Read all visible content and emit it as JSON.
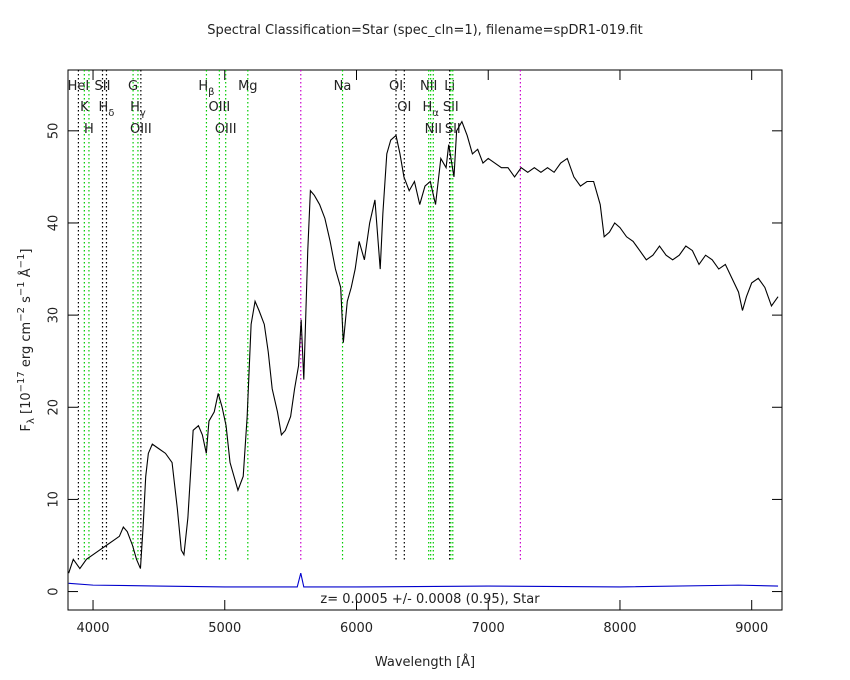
{
  "chart_data": {
    "type": "line",
    "title": "Spectral Classification=Star (spec_cln=1), filename=spDR1-019.fit",
    "xlabel": "Wavelength [Å]",
    "ylabel": [
      {
        "text": "F"
      },
      {
        "text": "λ",
        "shift": "sub"
      },
      {
        "text": " [10"
      },
      {
        "text": "−17",
        "shift": "sup"
      },
      {
        "text": " erg cm"
      },
      {
        "text": "−2",
        "shift": "sup"
      },
      {
        "text": " s"
      },
      {
        "text": "−1",
        "shift": "sup"
      },
      {
        "text": " Å"
      },
      {
        "text": "−1",
        "shift": "sup"
      },
      {
        "text": "]"
      }
    ],
    "annotation": "z= 0.0005 +/- 0.0008 (0.95), Star",
    "xlim": [
      3810,
      9230
    ],
    "ylim": [
      -2,
      56.6
    ],
    "xticks": [
      4000,
      5000,
      6000,
      7000,
      8000,
      9000
    ],
    "yticks": [
      0,
      10,
      20,
      30,
      40,
      50
    ],
    "series": [
      {
        "color": "#000000",
        "x": [
          3815,
          3850,
          3900,
          3950,
          4000,
          4050,
          4100,
          4150,
          4200,
          4230,
          4260,
          4300,
          4330,
          4360,
          4380,
          4400,
          4420,
          4450,
          4500,
          4550,
          4600,
          4640,
          4670,
          4690,
          4720,
          4760,
          4800,
          4830,
          4860,
          4880,
          4920,
          4950,
          4980,
          5010,
          5040,
          5070,
          5100,
          5140,
          5170,
          5200,
          5230,
          5260,
          5300,
          5330,
          5360,
          5400,
          5430,
          5460,
          5500,
          5530,
          5560,
          5580,
          5600,
          5630,
          5650,
          5680,
          5720,
          5760,
          5800,
          5840,
          5880,
          5900,
          5930,
          5960,
          5990,
          6020,
          6060,
          6100,
          6140,
          6180,
          6200,
          6230,
          6260,
          6300,
          6330,
          6360,
          6400,
          6440,
          6480,
          6520,
          6560,
          6600,
          6640,
          6680,
          6700,
          6740,
          6760,
          6800,
          6840,
          6880,
          6920,
          6960,
          7000,
          7050,
          7100,
          7150,
          7200,
          7250,
          7300,
          7350,
          7400,
          7450,
          7500,
          7550,
          7600,
          7650,
          7700,
          7750,
          7800,
          7850,
          7880,
          7920,
          7960,
          8000,
          8050,
          8100,
          8150,
          8200,
          8250,
          8300,
          8350,
          8400,
          8450,
          8500,
          8550,
          8600,
          8650,
          8700,
          8750,
          8800,
          8850,
          8900,
          8930,
          8960,
          9000,
          9050,
          9100,
          9150,
          9200
        ],
        "values": [
          2.0,
          3.5,
          2.5,
          3.5,
          4.0,
          4.5,
          5.0,
          5.5,
          6.0,
          7.0,
          6.5,
          5.0,
          3.5,
          2.5,
          7.0,
          12.5,
          15.0,
          16.0,
          15.5,
          15.0,
          14.0,
          9.0,
          4.5,
          4.0,
          8.0,
          17.5,
          18.0,
          17.0,
          15.0,
          18.5,
          19.5,
          21.5,
          20.0,
          18.0,
          14.0,
          12.5,
          11.0,
          12.5,
          19.0,
          29.0,
          31.5,
          30.5,
          29.0,
          26.0,
          22.0,
          19.5,
          17.0,
          17.5,
          19.0,
          22.0,
          24.5,
          29.5,
          23.0,
          37.0,
          43.5,
          43.0,
          42.0,
          40.5,
          38.0,
          35.0,
          33.0,
          27.0,
          31.5,
          33.0,
          35.0,
          38.0,
          36.0,
          40.0,
          42.5,
          35.0,
          41.0,
          47.5,
          49.0,
          49.5,
          47.5,
          45.0,
          43.5,
          44.5,
          42.0,
          44.0,
          44.5,
          42.0,
          47.0,
          46.0,
          48.5,
          45.0,
          50.0,
          51.0,
          49.5,
          47.5,
          48.0,
          46.5,
          47.0,
          46.5,
          46.0,
          46.0,
          45.0,
          46.0,
          45.5,
          46.0,
          45.5,
          46.0,
          45.5,
          46.5,
          47.0,
          45.0,
          44.0,
          44.5,
          44.5,
          42.0,
          38.5,
          39.0,
          40.0,
          39.5,
          38.5,
          38.0,
          37.0,
          36.0,
          36.5,
          37.5,
          36.5,
          36.0,
          36.5,
          37.5,
          37.0,
          35.5,
          36.5,
          36.0,
          35.0,
          35.5,
          34.0,
          32.5,
          30.5,
          32.0,
          33.5,
          34.0,
          33.0,
          31.0,
          32.0
        ]
      },
      {
        "color": "#0000cc",
        "x": [
          3815,
          4000,
          4500,
          5000,
          5550,
          5577,
          5600,
          6000,
          7000,
          8000,
          8900,
          9200
        ],
        "values": [
          0.9,
          0.7,
          0.6,
          0.5,
          0.5,
          2.0,
          0.5,
          0.5,
          0.6,
          0.5,
          0.7,
          0.6
        ]
      }
    ],
    "lines": [
      {
        "wavelength": 3889,
        "color": "#000000",
        "label": "HeI"
      },
      {
        "wavelength": 3934,
        "color": "#00cc00",
        "label": "K"
      },
      {
        "wavelength": 3969,
        "color": "#00cc00",
        "label": "H"
      },
      {
        "wavelength": 4072,
        "color": "#000000",
        "label": "SII"
      },
      {
        "wavelength": 4102,
        "color": "#000000",
        "label": "H",
        "label_sub": "δ"
      },
      {
        "wavelength": 4304,
        "color": "#00cc00",
        "label": "G"
      },
      {
        "wavelength": 4341,
        "color": "#00cc00",
        "label": "H",
        "label_sub": "γ"
      },
      {
        "wavelength": 4363,
        "color": "#000000",
        "label": "OIII"
      },
      {
        "wavelength": 4861,
        "color": "#00cc00",
        "label": "H",
        "label_sub": "β"
      },
      {
        "wavelength": 4959,
        "color": "#00cc00",
        "label": "OIII"
      },
      {
        "wavelength": 5007,
        "color": "#00cc00",
        "label": "OIII"
      },
      {
        "wavelength": 5175,
        "color": "#00cc00",
        "label": "Mg"
      },
      {
        "wavelength": 5577,
        "color": "#cc00cc"
      },
      {
        "wavelength": 5894,
        "color": "#00cc00",
        "label": "Na"
      },
      {
        "wavelength": 6300,
        "color": "#000000",
        "label": "OI"
      },
      {
        "wavelength": 6363,
        "color": "#000000",
        "label": "OI"
      },
      {
        "wavelength": 6548,
        "color": "#00cc00",
        "label": "NII"
      },
      {
        "wavelength": 6563,
        "color": "#00cc00",
        "label": "H",
        "label_sub": "α"
      },
      {
        "wavelength": 6583,
        "color": "#00cc00",
        "label": "NII"
      },
      {
        "wavelength": 6707,
        "color": "#000000",
        "label": "Li"
      },
      {
        "wavelength": 6716,
        "color": "#00cc00",
        "label": "SII"
      },
      {
        "wavelength": 6731,
        "color": "#00cc00",
        "label": "SII"
      },
      {
        "wavelength": 7244,
        "color": "#cc00cc"
      }
    ]
  }
}
